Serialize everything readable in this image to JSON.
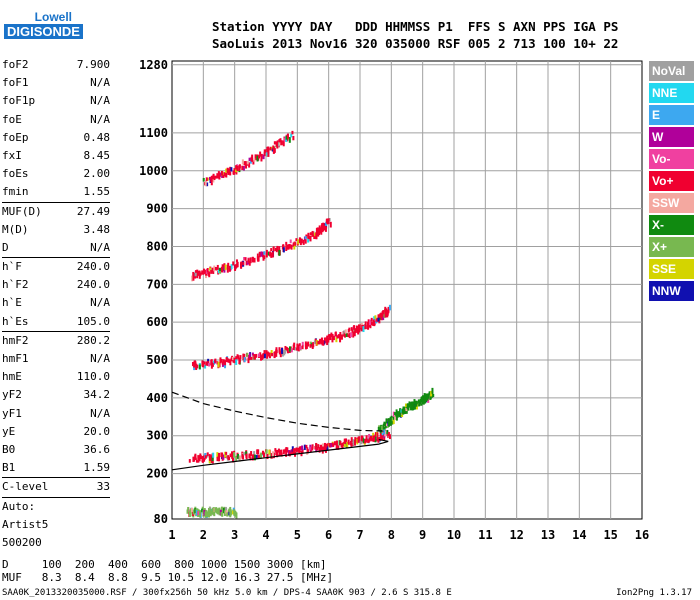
{
  "logo": {
    "line1": "Lowell",
    "line2": "DIGISONDE"
  },
  "header": {
    "line1": "Station YYYY DAY   DDD HHMMSS P1  FFS S AXN PPS IGA PS",
    "line2": "SaoLuis 2013 Nov16 320 035000 RSF 005 2 713 100 10+ 22"
  },
  "params": [
    {
      "name": "foF2",
      "value": "7.900"
    },
    {
      "name": "foF1",
      "value": "N/A"
    },
    {
      "name": "foF1p",
      "value": "N/A"
    },
    {
      "name": "foE",
      "value": "N/A"
    },
    {
      "name": "foEp",
      "value": "0.48"
    },
    {
      "name": "fxI",
      "value": "8.45"
    },
    {
      "name": "foEs",
      "value": "2.00"
    },
    {
      "name": "fmin",
      "value": "1.55"
    },
    {
      "name": "MUF(D)",
      "value": "27.49",
      "sep": true
    },
    {
      "name": "M(D)",
      "value": "3.48"
    },
    {
      "name": "D",
      "value": "N/A"
    },
    {
      "name": "h`F",
      "value": "240.0",
      "sep": true
    },
    {
      "name": "h`F2",
      "value": "240.0"
    },
    {
      "name": "h`E",
      "value": "N/A"
    },
    {
      "name": "h`Es",
      "value": "105.0"
    },
    {
      "name": "hmF2",
      "value": "280.2",
      "sep": true
    },
    {
      "name": "hmF1",
      "value": "N/A"
    },
    {
      "name": "hmE",
      "value": "110.0"
    },
    {
      "name": "yF2",
      "value": "34.2"
    },
    {
      "name": "yF1",
      "value": "N/A"
    },
    {
      "name": "yE",
      "value": "20.0"
    },
    {
      "name": "B0",
      "value": "36.6"
    },
    {
      "name": "B1",
      "value": "1.59"
    },
    {
      "name": "C-level",
      "value": "33",
      "sep": true
    },
    {
      "name": "Auto:",
      "value": "",
      "sep": true
    },
    {
      "name": "Artist5",
      "value": ""
    },
    {
      "name": "500200",
      "value": ""
    }
  ],
  "legend": [
    {
      "label": "NoVal",
      "color": "#a0a0a0"
    },
    {
      "label": "NNE",
      "color": "#22d8f0"
    },
    {
      "label": "E",
      "color": "#3da8f0"
    },
    {
      "label": "W",
      "color": "#b0009a"
    },
    {
      "label": "Vo-",
      "color": "#f040a0"
    },
    {
      "label": "Vo+",
      "color": "#f00030"
    },
    {
      "label": "SSW",
      "color": "#f4a8a0"
    },
    {
      "label": "X-",
      "color": "#108a10"
    },
    {
      "label": "X+",
      "color": "#78b850"
    },
    {
      "label": "SSE",
      "color": "#d4d400"
    },
    {
      "label": "NNW",
      "color": "#1010b0"
    }
  ],
  "muf_table": {
    "line1": "D     100  200  400  600  800 1000 1500 3000 [km]",
    "line2": "MUF   8.3  8.4  8.8  9.5 10.5 12.0 16.3 27.5 [MHz]"
  },
  "footer": {
    "left": "SAA0K_2013320035000.RSF / 300fx256h 50 kHz 5.0 km / DPS-4 SAA0K 903 / 2.6 S 315.8 E",
    "right": "Ion2Png 1.3.17"
  },
  "chart_data": {
    "type": "scatter",
    "title": "",
    "xlabel": "",
    "ylabel": "",
    "xlim": [
      1,
      16
    ],
    "ylim": [
      80,
      1290
    ],
    "x_ticks": [
      1,
      2,
      3,
      4,
      5,
      6,
      7,
      8,
      9,
      10,
      11,
      12,
      13,
      14,
      15,
      16
    ],
    "y_ticks": [
      80,
      200,
      300,
      400,
      500,
      600,
      700,
      800,
      900,
      1000,
      1100,
      1280
    ],
    "grid": true,
    "legend_position": "right",
    "traces": [
      {
        "name": "O-trace 1st hop",
        "color_key": "Vo+",
        "x": [
          1.6,
          2.5,
          3.5,
          4.5,
          5.5,
          6.5,
          7.3,
          7.9
        ],
        "y": [
          245,
          250,
          255,
          262,
          272,
          285,
          298,
          312
        ]
      },
      {
        "name": "O-trace 2nd hop",
        "color_key": "Vo+",
        "x": [
          1.6,
          2.5,
          3.5,
          4.5,
          5.5,
          6.5,
          7.3,
          7.9
        ],
        "y": [
          490,
          500,
          515,
          530,
          550,
          575,
          600,
          640
        ]
      },
      {
        "name": "O-trace 3rd hop",
        "color_key": "Vo+",
        "x": [
          1.6,
          2.5,
          3.5,
          4.5,
          5.5,
          6.0
        ],
        "y": [
          730,
          745,
          770,
          800,
          835,
          870
        ]
      },
      {
        "name": "O-trace 4th hop",
        "color_key": "Vo+",
        "x": [
          2.0,
          3.0,
          4.0,
          4.8
        ],
        "y": [
          975,
          1010,
          1055,
          1100
        ]
      },
      {
        "name": "sporadic E",
        "color_key": "X+",
        "x": [
          1.5,
          2.0,
          2.5,
          3.0
        ],
        "y": [
          105,
          105,
          105,
          105
        ]
      },
      {
        "name": "spread F",
        "color_key": "X-",
        "x": [
          7.6,
          8.0,
          8.5,
          9.0,
          9.3
        ],
        "y": [
          320,
          350,
          380,
          400,
          420
        ]
      }
    ],
    "profile_curves": [
      {
        "name": "model profile",
        "style": "dashed",
        "x": [
          1.0,
          2.0,
          3.0,
          4.0,
          5.0,
          6.0,
          7.0,
          7.9
        ],
        "y": [
          415,
          385,
          365,
          348,
          333,
          322,
          314,
          312
        ]
      },
      {
        "name": "model trace",
        "style": "solid",
        "x": [
          1.0,
          2.0,
          3.0,
          4.0,
          5.0,
          6.0,
          6.8,
          7.6,
          7.9,
          7.6
        ],
        "y": [
          210,
          222,
          232,
          242,
          252,
          262,
          270,
          278,
          285,
          290
        ]
      }
    ]
  }
}
